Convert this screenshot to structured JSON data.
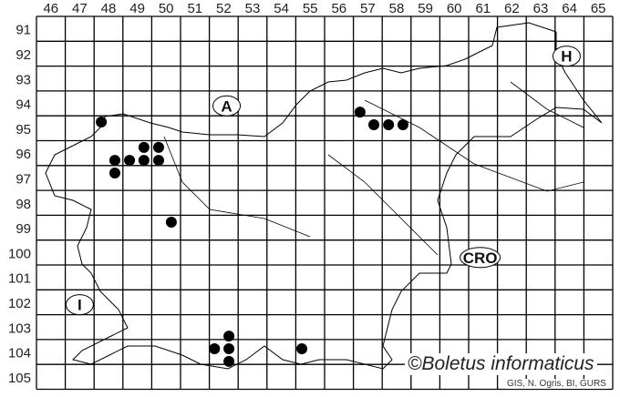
{
  "map": {
    "columns": [
      "46",
      "47",
      "48",
      "49",
      "50",
      "51",
      "52",
      "53",
      "54",
      "55",
      "56",
      "57",
      "58",
      "59",
      "60",
      "61",
      "62",
      "63",
      "64",
      "65"
    ],
    "rows": [
      "91",
      "92",
      "93",
      "94",
      "95",
      "96",
      "97",
      "98",
      "99",
      "100",
      "101",
      "102",
      "103",
      "104",
      "105"
    ],
    "region_labels": [
      {
        "id": "austria",
        "text": "A",
        "col": 52.6,
        "row": 94.6
      },
      {
        "id": "hungary",
        "text": "H",
        "col": 64.4,
        "row": 92.6
      },
      {
        "id": "croatia",
        "text": "CRO",
        "col": 61.4,
        "row": 100.7
      },
      {
        "id": "italy",
        "text": "I",
        "col": 47.5,
        "row": 102.6
      }
    ],
    "records": [
      [
        48.25,
        95.25
      ],
      [
        48.72,
        96.79
      ],
      [
        49.23,
        96.79
      ],
      [
        49.73,
        96.27
      ],
      [
        50.24,
        96.27
      ],
      [
        49.73,
        96.79
      ],
      [
        50.24,
        96.79
      ],
      [
        48.72,
        97.3
      ],
      [
        50.68,
        99.28
      ],
      [
        57.23,
        94.85
      ],
      [
        57.71,
        95.36
      ],
      [
        58.22,
        95.36
      ],
      [
        58.72,
        95.36
      ],
      [
        52.68,
        103.86
      ],
      [
        52.18,
        104.37
      ],
      [
        52.68,
        104.37
      ],
      [
        52.68,
        104.88
      ],
      [
        55.21,
        104.37
      ]
    ],
    "record_color": "#000000",
    "copyright": "©Boletus informaticus",
    "source": "GIS, N. Ogris, BI, GURS"
  }
}
